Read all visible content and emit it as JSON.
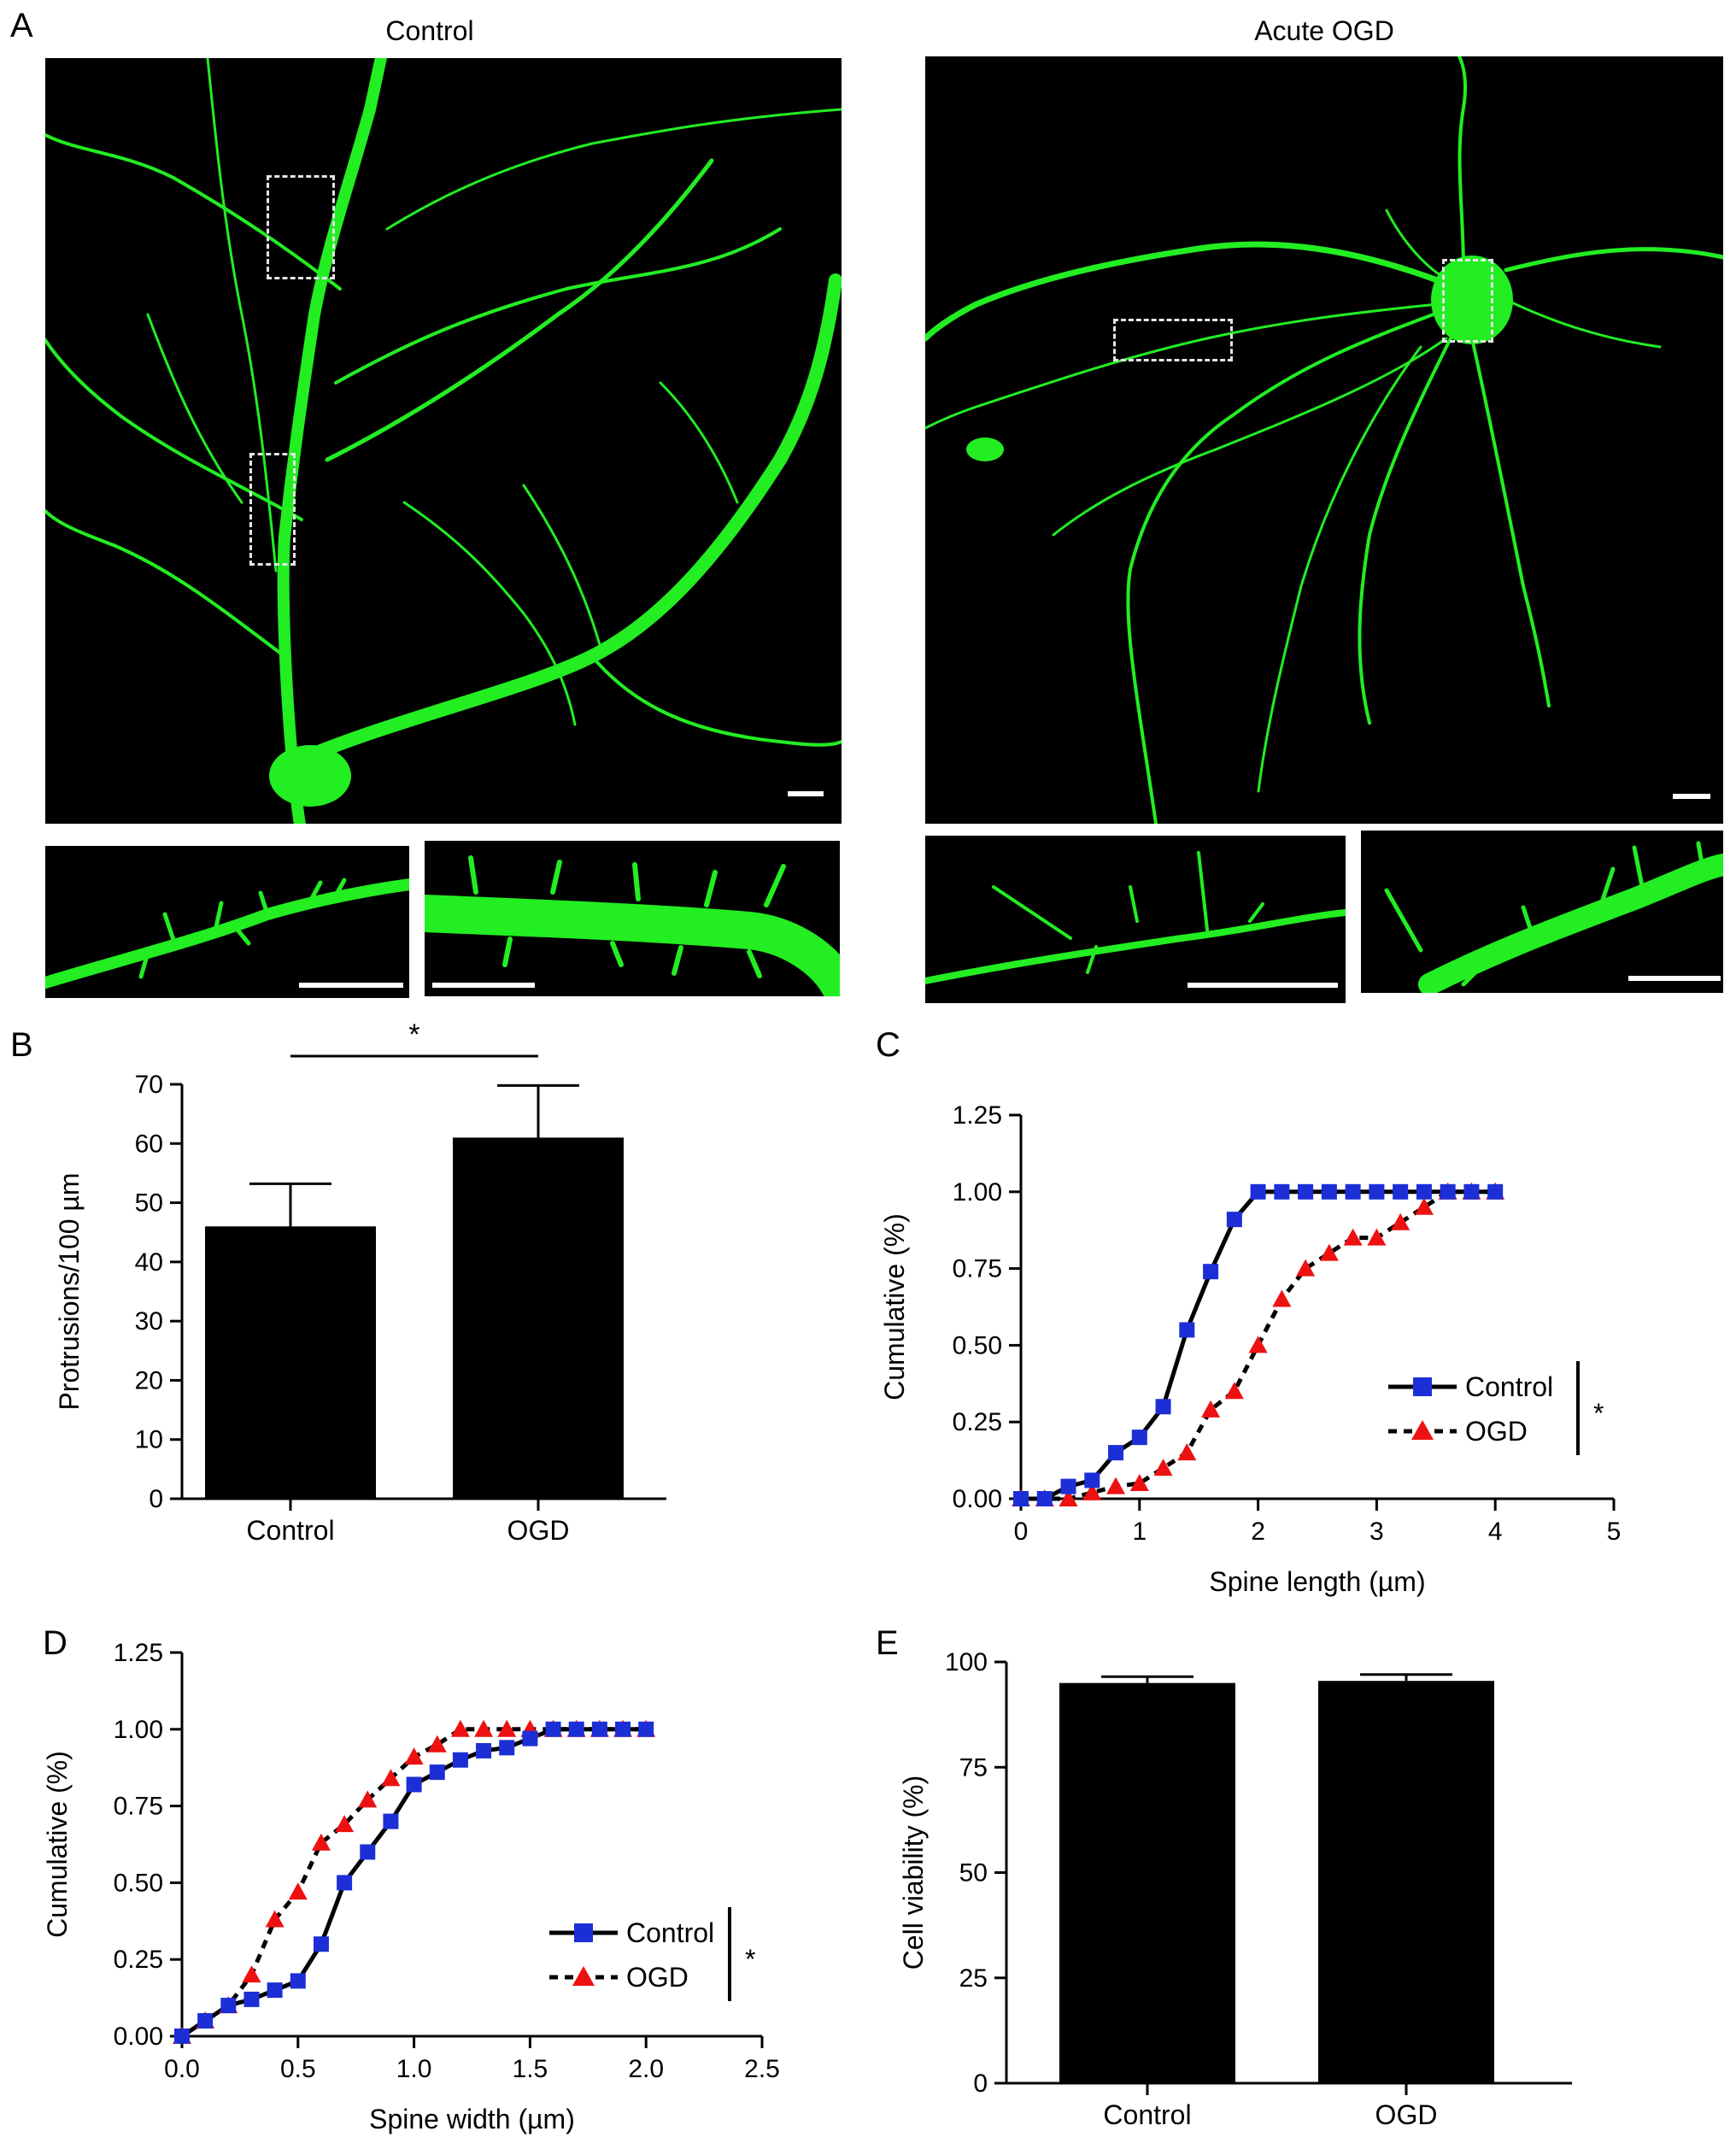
{
  "panels": {
    "A": "A",
    "B": "B",
    "C": "C",
    "D": "D",
    "E": "E"
  },
  "micrographs": {
    "left_title": "Control",
    "right_title": "Acute OGD"
  },
  "colors": {
    "neuron": "#22ee22",
    "control_series": "#1c2fd6",
    "ogd_series": "#ee1111",
    "bars": "#000000"
  },
  "chart_data": [
    {
      "id": "B",
      "type": "bar",
      "categories": [
        "Control",
        "OGD"
      ],
      "values": [
        46,
        61
      ],
      "errors": [
        7.2,
        8.8
      ],
      "ylabel": "Protrusions/100 µm",
      "ylim": [
        0,
        70
      ],
      "yticks": [
        0,
        10,
        20,
        30,
        40,
        50,
        60,
        70
      ],
      "annotation": "*"
    },
    {
      "id": "C",
      "type": "line",
      "xlabel": "Spine length (µm)",
      "ylabel": "Cumulative (%)",
      "xlim": [
        0,
        5
      ],
      "ylim": [
        0,
        1.25
      ],
      "xticks": [
        0,
        1,
        2,
        3,
        4,
        5
      ],
      "yticks": [
        "0.00",
        "0.25",
        "0.50",
        "0.75",
        "1.00",
        "1.25"
      ],
      "legend_position": "right",
      "significance": "*",
      "series": [
        {
          "name": "Control",
          "marker": "square",
          "line": "solid",
          "x": [
            0,
            0.2,
            0.4,
            0.6,
            0.8,
            1.0,
            1.2,
            1.4,
            1.6,
            1.8,
            2.0,
            2.2,
            2.4,
            2.6,
            2.8,
            3.0,
            3.2,
            3.4,
            3.6,
            3.8,
            4.0
          ],
          "y": [
            0,
            0,
            0.04,
            0.06,
            0.15,
            0.2,
            0.3,
            0.55,
            0.74,
            0.91,
            1,
            1,
            1,
            1,
            1,
            1,
            1,
            1,
            1,
            1,
            1
          ]
        },
        {
          "name": "OGD",
          "marker": "triangle",
          "line": "dashed",
          "x": [
            0,
            0.2,
            0.4,
            0.6,
            0.8,
            1.0,
            1.2,
            1.4,
            1.6,
            1.8,
            2.0,
            2.2,
            2.4,
            2.6,
            2.8,
            3.0,
            3.2,
            3.4,
            3.6,
            3.8,
            4.0
          ],
          "y": [
            0,
            0,
            0,
            0.02,
            0.04,
            0.05,
            0.1,
            0.15,
            0.29,
            0.35,
            0.5,
            0.65,
            0.75,
            0.8,
            0.85,
            0.85,
            0.9,
            0.95,
            1,
            1,
            1
          ]
        }
      ]
    },
    {
      "id": "D",
      "type": "line",
      "xlabel": "Spine width (µm)",
      "ylabel": "Cumulative (%)",
      "xlim": [
        0,
        2.5
      ],
      "ylim": [
        0,
        1.25
      ],
      "xticks": [
        "0.0",
        "0.5",
        "1.0",
        "1.5",
        "2.0",
        "2.5"
      ],
      "yticks": [
        "0.00",
        "0.25",
        "0.50",
        "0.75",
        "1.00",
        "1.25"
      ],
      "legend_position": "right",
      "significance": "*",
      "series": [
        {
          "name": "Control",
          "marker": "square",
          "line": "solid",
          "x": [
            0,
            0.1,
            0.2,
            0.3,
            0.4,
            0.5,
            0.6,
            0.7,
            0.8,
            0.9,
            1.0,
            1.1,
            1.2,
            1.3,
            1.4,
            1.5,
            1.6,
            1.7,
            1.8,
            1.9,
            2.0
          ],
          "y": [
            0,
            0.05,
            0.1,
            0.12,
            0.15,
            0.18,
            0.3,
            0.5,
            0.6,
            0.7,
            0.82,
            0.86,
            0.9,
            0.93,
            0.94,
            0.97,
            1,
            1,
            1,
            1,
            1
          ]
        },
        {
          "name": "OGD",
          "marker": "triangle",
          "line": "dashed",
          "x": [
            0,
            0.1,
            0.2,
            0.3,
            0.4,
            0.5,
            0.6,
            0.7,
            0.8,
            0.9,
            1.0,
            1.1,
            1.2,
            1.3,
            1.4,
            1.5,
            1.6,
            1.7,
            1.8,
            1.9,
            2.0
          ],
          "y": [
            0,
            0.05,
            0.1,
            0.2,
            0.38,
            0.47,
            0.63,
            0.69,
            0.77,
            0.84,
            0.91,
            0.95,
            1,
            1,
            1,
            1,
            1,
            1,
            1,
            1,
            1
          ]
        }
      ]
    },
    {
      "id": "E",
      "type": "bar",
      "categories": [
        "Control",
        "OGD"
      ],
      "values": [
        95,
        95.5
      ],
      "errors": [
        1.5,
        1.5
      ],
      "ylabel": "Cell viability (%)",
      "ylim": [
        0,
        100
      ],
      "yticks": [
        0,
        25,
        50,
        75,
        100
      ]
    }
  ]
}
